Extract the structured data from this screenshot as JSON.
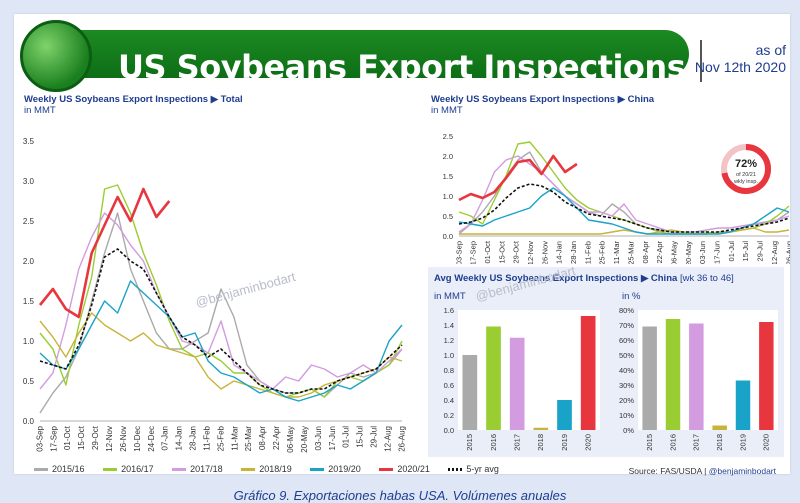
{
  "header": {
    "title": "US Soybeans Export Inspections",
    "as_of_line1": "as of",
    "as_of_line2": "Nov 12th 2020"
  },
  "watermark": "@benjaminbodart",
  "source": {
    "prefix": "Source: FAS/USDA | ",
    "handle": "@benjaminbodart"
  },
  "caption": "Gráfico 9. Exportaciones habas USA. Volúmenes anuales",
  "colors": {
    "2015/16": "#aaaaaa",
    "2016/17": "#9acd32",
    "2017/18": "#d39be0",
    "2018/19": "#c8b43a",
    "2019/20": "#1aa3c8",
    "2020/21": "#e8363f",
    "5-yr avg": "#111111"
  },
  "chart_data": [
    {
      "type": "line",
      "title": "Weekly US Soybeans Export Inspections ▶ Total",
      "unit": "in MMT",
      "ylim": [
        0,
        3.5
      ],
      "yticks": [
        "0.0",
        "0.5",
        "1.0",
        "1.5",
        "2.0",
        "2.5",
        "3.0",
        "3.5"
      ],
      "x_labels": [
        "03-Sep",
        "17-Sep",
        "01-Oct",
        "15-Oct",
        "29-Oct",
        "12-Nov",
        "26-Nov",
        "10-Dec",
        "24-Dec",
        "07-Jan",
        "14-Jan",
        "28-Jan",
        "11-Feb",
        "25-Feb",
        "11-Mar",
        "25-Mar",
        "08-Apr",
        "22-Apr",
        "06-May",
        "20-May",
        "03-Jun",
        "17-Jun",
        "01-Jul",
        "15-Jul",
        "29-Jul",
        "12-Aug",
        "26-Aug"
      ],
      "grid": false,
      "series": [
        {
          "name": "2015/16",
          "values": [
            0.1,
            0.35,
            0.55,
            0.9,
            1.5,
            2.1,
            2.6,
            1.9,
            1.5,
            1.1,
            0.9,
            0.9,
            1.0,
            1.1,
            1.65,
            1.3,
            0.7,
            0.5,
            0.4,
            0.35,
            0.35,
            0.4,
            0.3,
            0.45,
            0.6,
            0.55,
            0.6,
            0.7,
            0.9
          ]
        },
        {
          "name": "2016/17",
          "values": [
            1.1,
            0.9,
            0.45,
            1.2,
            1.8,
            2.9,
            2.95,
            2.6,
            2.1,
            1.7,
            1.25,
            0.9,
            0.8,
            0.85,
            0.75,
            0.6,
            0.6,
            0.45,
            0.35,
            0.3,
            0.35,
            0.4,
            0.3,
            0.5,
            0.55,
            0.5,
            0.6,
            0.7,
            1.0
          ]
        },
        {
          "name": "2017/18",
          "values": [
            0.4,
            0.6,
            1.2,
            1.9,
            2.3,
            2.6,
            2.45,
            2.2,
            2.0,
            1.6,
            1.3,
            1.0,
            0.95,
            0.85,
            1.25,
            0.7,
            0.6,
            0.5,
            0.4,
            0.55,
            0.5,
            0.7,
            0.65,
            0.55,
            0.6,
            0.7,
            0.6,
            0.75,
            0.9
          ]
        },
        {
          "name": "2018/19",
          "values": [
            1.25,
            1.05,
            0.8,
            1.1,
            1.35,
            1.2,
            1.1,
            1.0,
            1.1,
            0.95,
            0.9,
            0.85,
            0.8,
            0.55,
            0.4,
            0.5,
            0.45,
            0.4,
            0.35,
            0.3,
            0.3,
            0.35,
            0.45,
            0.5,
            0.55,
            0.6,
            0.65,
            0.8,
            0.75
          ]
        },
        {
          "name": "2019/20",
          "values": [
            0.85,
            0.7,
            0.65,
            0.9,
            1.2,
            1.5,
            1.35,
            1.75,
            1.6,
            1.45,
            1.3,
            1.05,
            1.1,
            0.75,
            0.6,
            0.55,
            0.45,
            0.35,
            0.4,
            0.3,
            0.25,
            0.3,
            0.35,
            0.45,
            0.4,
            0.5,
            0.6,
            1.0,
            1.2
          ]
        },
        {
          "name": "2020/21",
          "values": [
            1.45,
            1.65,
            1.4,
            1.3,
            2.1,
            2.45,
            2.8,
            2.5,
            2.9,
            2.55,
            2.75
          ]
        },
        {
          "name": "5-yr avg",
          "values": [
            0.75,
            0.7,
            0.65,
            0.95,
            1.45,
            2.05,
            2.15,
            2.0,
            1.9,
            1.6,
            1.3,
            1.05,
            0.95,
            0.8,
            0.9,
            0.75,
            0.6,
            0.45,
            0.4,
            0.35,
            0.35,
            0.4,
            0.4,
            0.5,
            0.55,
            0.6,
            0.65,
            0.8,
            0.95
          ]
        }
      ]
    },
    {
      "type": "line",
      "title": "Weekly US Soybeans Export Inspections ▶ China",
      "unit": "in MMT",
      "ylim": [
        0,
        2.5
      ],
      "yticks": [
        "0.0",
        "0.5",
        "1.0",
        "1.5",
        "2.0",
        "2.5"
      ],
      "x_labels": [
        "03-Sep",
        "17-Sep",
        "01-Oct",
        "15-Oct",
        "29-Oct",
        "12-Nov",
        "26-Nov",
        "14-Jan",
        "28-Jan",
        "11-Feb",
        "25-Feb",
        "11-Mar",
        "25-Mar",
        "08-Apr",
        "22-Apr",
        "06-May",
        "20-May",
        "03-Jun",
        "17-Jun",
        "01-Jul",
        "15-Jul",
        "29-Jul",
        "12-Aug",
        "26-Aug"
      ],
      "series": [
        {
          "name": "2015/16",
          "values": [
            0.05,
            0.3,
            0.6,
            1.0,
            1.5,
            1.9,
            2.1,
            1.6,
            1.3,
            1.0,
            0.8,
            0.6,
            0.5,
            0.8,
            0.6,
            0.3,
            0.2,
            0.15,
            0.1,
            0.05,
            0.05,
            0.05,
            0.1,
            0.1,
            0.2,
            0.3,
            0.35,
            0.4,
            0.6
          ]
        },
        {
          "name": "2016/17",
          "values": [
            0.6,
            0.5,
            0.3,
            0.9,
            1.5,
            2.3,
            2.35,
            2.0,
            1.6,
            1.2,
            0.9,
            0.7,
            0.6,
            0.5,
            0.4,
            0.3,
            0.2,
            0.1,
            0.05,
            0.05,
            0.1,
            0.1,
            0.05,
            0.1,
            0.15,
            0.2,
            0.3,
            0.5,
            0.75
          ]
        },
        {
          "name": "2017/18",
          "values": [
            0.1,
            0.3,
            0.9,
            1.6,
            1.9,
            2.0,
            1.8,
            1.6,
            1.3,
            1.0,
            0.8,
            0.6,
            0.6,
            0.5,
            0.8,
            0.4,
            0.3,
            0.2,
            0.1,
            0.1,
            0.1,
            0.15,
            0.2,
            0.2,
            0.25,
            0.3,
            0.3,
            0.4,
            0.5
          ]
        },
        {
          "name": "2018/19",
          "values": [
            0.05,
            0.05,
            0.05,
            0.05,
            0.05,
            0.05,
            0.05,
            0.05,
            0.05,
            0.05,
            0.05,
            0.05,
            0.05,
            0.1,
            0.15,
            0.1,
            0.05,
            0.1,
            0.15,
            0.1,
            0.05,
            0.05,
            0.1,
            0.1,
            0.15,
            0.2,
            0.1,
            0.1,
            0.15
          ]
        },
        {
          "name": "2019/20",
          "values": [
            0.35,
            0.3,
            0.25,
            0.4,
            0.5,
            0.6,
            0.7,
            1.0,
            1.2,
            1.0,
            0.7,
            0.4,
            0.35,
            0.3,
            0.2,
            0.1,
            0.05,
            0.05,
            0.05,
            0.05,
            0.05,
            0.05,
            0.05,
            0.1,
            0.2,
            0.3,
            0.5,
            0.7,
            0.6
          ]
        },
        {
          "name": "2020/21",
          "values": [
            0.9,
            1.05,
            0.95,
            1.1,
            1.45,
            1.85,
            1.9,
            1.55,
            2.0,
            1.6,
            1.8
          ]
        },
        {
          "name": "5-yr avg",
          "values": [
            0.3,
            0.35,
            0.45,
            0.65,
            0.95,
            1.2,
            1.3,
            1.25,
            1.1,
            0.85,
            0.7,
            0.55,
            0.5,
            0.45,
            0.4,
            0.3,
            0.2,
            0.15,
            0.1,
            0.1,
            0.1,
            0.1,
            0.1,
            0.15,
            0.2,
            0.25,
            0.3,
            0.35,
            0.45
          ]
        }
      ],
      "donut": {
        "value_label": "72%",
        "value": 72,
        "line1": "of 20/21",
        "line2": "wkly insp."
      }
    },
    {
      "type": "bar",
      "title": "Avg Weekly US Soybeans Export Inspections ▶ China",
      "title_suffix": "[wk 36 to 46]",
      "unit": "in MMT",
      "ylim": [
        0,
        1.6
      ],
      "yticks": [
        "0.0",
        "0.2",
        "0.4",
        "0.6",
        "0.8",
        "1.0",
        "1.2",
        "1.4",
        "1.6"
      ],
      "categories": [
        "2015",
        "2016",
        "2017",
        "2018",
        "2019",
        "2020"
      ],
      "values": [
        1.0,
        1.38,
        1.23,
        0.03,
        0.4,
        1.52
      ],
      "colors": [
        "#aaaaaa",
        "#9acd32",
        "#d39be0",
        "#c8b43a",
        "#1aa3c8",
        "#e8363f"
      ]
    },
    {
      "type": "bar",
      "unit": "in %",
      "ylim": [
        0,
        80
      ],
      "yticks": [
        "0%",
        "10%",
        "20%",
        "30%",
        "40%",
        "50%",
        "60%",
        "70%",
        "80%"
      ],
      "categories": [
        "2015",
        "2016",
        "2017",
        "2018",
        "2019",
        "2020"
      ],
      "values": [
        69,
        74,
        71,
        3,
        33,
        72
      ],
      "colors": [
        "#aaaaaa",
        "#9acd32",
        "#d39be0",
        "#c8b43a",
        "#1aa3c8",
        "#e8363f"
      ]
    }
  ]
}
